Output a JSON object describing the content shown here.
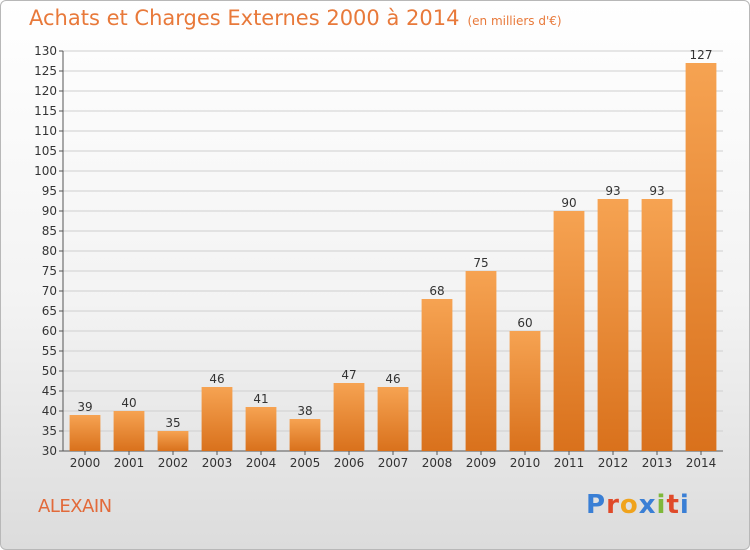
{
  "header": {
    "title": "Achats et Charges Externes 2000 à 2014",
    "subtitle": "(en milliers d'€)"
  },
  "footer": {
    "commune": "ALEXAIN",
    "brand": "Proxiti",
    "brand_colors": [
      "#3a7fd5",
      "#e04a2a",
      "#f0a31c",
      "#3a7fd5",
      "#7fb83a",
      "#e04a2a",
      "#3a7fd5"
    ]
  },
  "colors": {
    "bar_light": "#f6a352",
    "bar_dark": "#d9711c",
    "axis_text": "#333333",
    "grid": "#cfcfcf"
  },
  "chart_data": {
    "type": "bar",
    "title": "Achats et Charges Externes 2000 à 2014",
    "subtitle": "(en milliers d'€)",
    "categories": [
      "2000",
      "2001",
      "2002",
      "2003",
      "2004",
      "2005",
      "2006",
      "2007",
      "2008",
      "2009",
      "2010",
      "2011",
      "2012",
      "2013",
      "2014"
    ],
    "values": [
      39,
      40,
      35,
      46,
      41,
      38,
      47,
      46,
      68,
      75,
      60,
      90,
      93,
      93,
      127
    ],
    "ylim": [
      30,
      130
    ],
    "ytick_step": 5,
    "grid": true,
    "xlabel": "",
    "ylabel": ""
  }
}
